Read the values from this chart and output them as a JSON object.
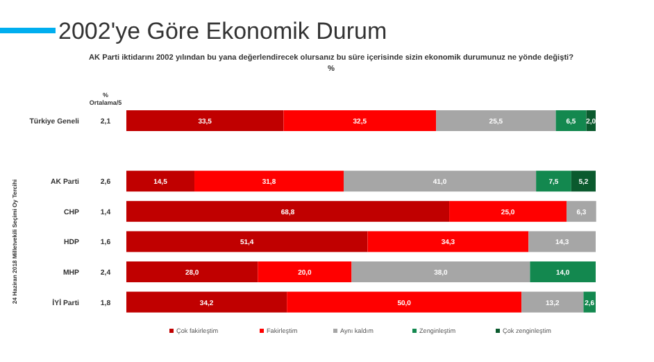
{
  "chart_data": {
    "type": "bar",
    "orientation": "horizontal",
    "stacked": true,
    "title": "2002'ye Göre Ekonomik Durum",
    "subtitle": "AK Parti iktidarını 2002 yılından bu yana değerlendirecek olursanız bu süre içerisinde sizin ekonomik durumunuz ne yönde değişti? %",
    "ylabel": "24 Haziran 2018 Milletvekili Seçimi Oy Tercihi",
    "categories": [
      "Türkiye Geneli",
      null,
      "AK Parti",
      "CHP",
      "HDP",
      "MHP",
      "İYİ Parti"
    ],
    "xlim": [
      0,
      100
    ],
    "tick_labels": "y",
    "legend": "bottom",
    "annotations": [
      "% Ortalama/5",
      "2,1",
      "2,6",
      "1,4",
      "1,6",
      "2,4",
      "1,8"
    ],
    "series": [
      {
        "name": "Çok fakirleştim",
        "color": "#c00000",
        "values": [
          33.5,
          null,
          14.5,
          68.8,
          51.4,
          28.0,
          34.2
        ],
        "value_labels": [
          "33,5",
          null,
          "14,5",
          "68,8",
          "51,4",
          "28,0",
          "34,2"
        ]
      },
      {
        "name": "Fakirleştim",
        "color": "#ff0000",
        "values": [
          32.5,
          null,
          31.8,
          25.0,
          34.3,
          20.0,
          50.0
        ],
        "value_labels": [
          "32,5",
          null,
          "31,8",
          "25,0",
          "34,3",
          "20,0",
          "50,0"
        ]
      },
      {
        "name": "Aynı kaldım",
        "color": "#a6a6a6",
        "values": [
          25.5,
          null,
          41.0,
          6.3,
          14.3,
          38.0,
          13.2
        ],
        "value_labels": [
          "25,5",
          null,
          "41,0",
          "6,3",
          "14,3",
          "38,0",
          "13,2"
        ]
      },
      {
        "name": "Zenginleştim",
        "color": "#13884f",
        "values": [
          6.5,
          null,
          7.5,
          null,
          null,
          14.0,
          2.6
        ],
        "value_labels": [
          "6,5",
          null,
          "7,5",
          null,
          null,
          "14,0",
          "2,6"
        ]
      },
      {
        "name": "Çok zenginleştim",
        "color": "#0b5a2e",
        "values": [
          2.0,
          null,
          5.2,
          null,
          null,
          null,
          null
        ],
        "value_labels": [
          "2,0",
          null,
          "5,2",
          null,
          null,
          null,
          null
        ]
      }
    ]
  }
}
